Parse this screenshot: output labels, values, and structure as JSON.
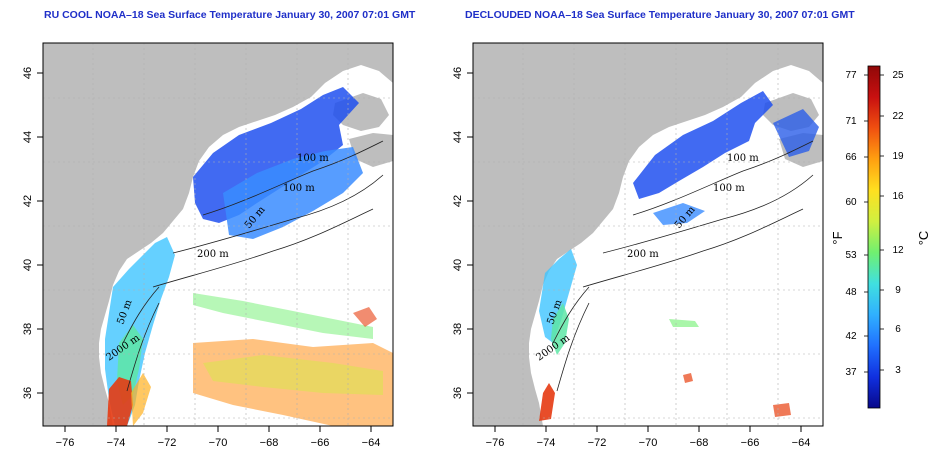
{
  "left_panel": {
    "title": "RU COOL NOAA–18 Sea Surface Temperature January 30, 2007 07:01 GMT",
    "contour_labels": [
      "100 m",
      "100 m",
      "50 m",
      "200 m",
      "50 m",
      "2000 m"
    ]
  },
  "right_panel": {
    "title": "DECLOUDED NOAA–18 Sea Surface Temperature January 30, 2007 07:01 GMT",
    "contour_labels": [
      "100 m",
      "100 m",
      "50 m",
      "200 m",
      "50 m",
      "2000 m"
    ]
  },
  "axes": {
    "x_ticks": [
      "−76",
      "−74",
      "−72",
      "−70",
      "−68",
      "−66",
      "−64"
    ],
    "y_ticks": [
      "36",
      "38",
      "40",
      "42",
      "44",
      "46"
    ]
  },
  "colorbar": {
    "fahrenheit_ticks": [
      "77",
      "71",
      "66",
      "60",
      "53",
      "48",
      "42",
      "37"
    ],
    "celsius_ticks": [
      "25",
      "22",
      "19",
      "16",
      "12",
      "9",
      "6",
      "3"
    ],
    "fahrenheit_unit": "°F",
    "celsius_unit": "°C",
    "colors": [
      "#08088a",
      "#1030e0",
      "#2070ff",
      "#30b0ff",
      "#40e0e0",
      "#70f070",
      "#d0f040",
      "#ffe020",
      "#ffa010",
      "#f05010",
      "#c81010",
      "#900808"
    ]
  },
  "colors": {
    "land": "#bebebe",
    "grid": "#b0b0b0"
  }
}
